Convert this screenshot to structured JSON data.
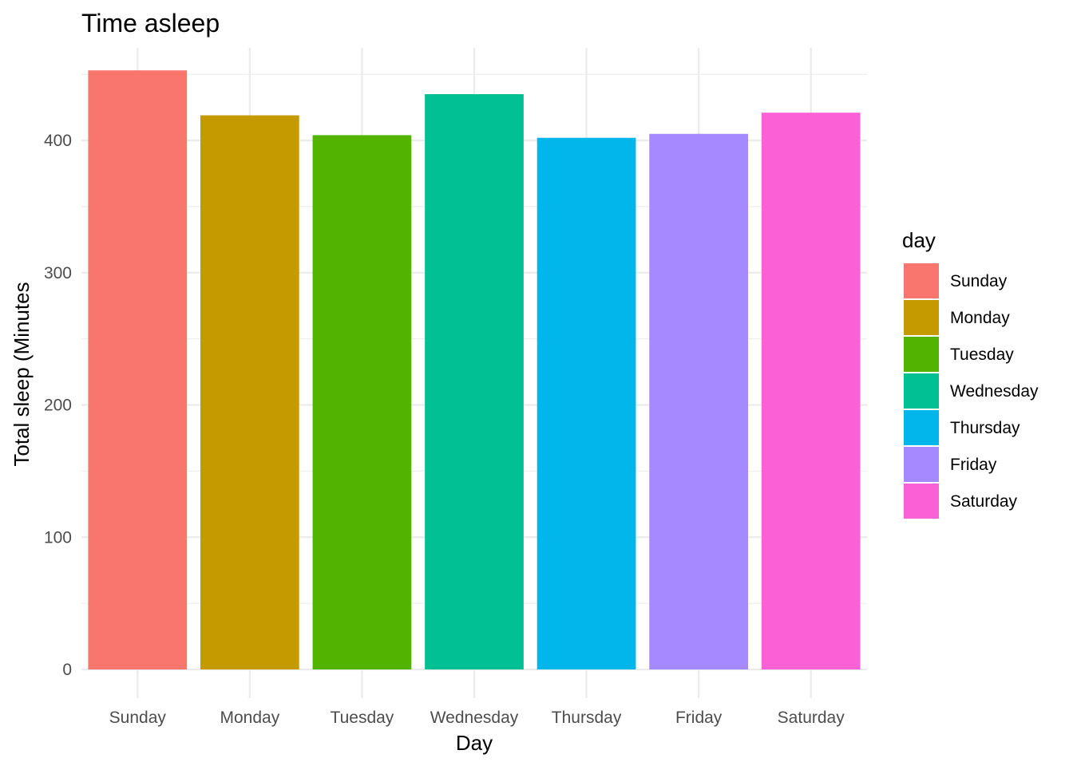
{
  "chart_data": {
    "type": "bar",
    "title": "Time asleep",
    "xlabel": "Day",
    "ylabel": "Total sleep (Minutes",
    "categories": [
      "Sunday",
      "Monday",
      "Tuesday",
      "Wednesday",
      "Thursday",
      "Friday",
      "Saturday"
    ],
    "values": [
      453,
      419,
      404,
      435,
      402,
      405,
      421
    ],
    "ylim": [
      0,
      470
    ],
    "yticks": [
      0,
      100,
      200,
      300,
      400
    ],
    "grid": true,
    "legend": {
      "title": "day",
      "position": "right",
      "items": [
        "Sunday",
        "Monday",
        "Tuesday",
        "Wednesday",
        "Thursday",
        "Friday",
        "Saturday"
      ]
    },
    "colors": [
      "#F8766D",
      "#C49A00",
      "#53B400",
      "#00C094",
      "#00B6EB",
      "#A58AFF",
      "#FB61D7"
    ]
  }
}
